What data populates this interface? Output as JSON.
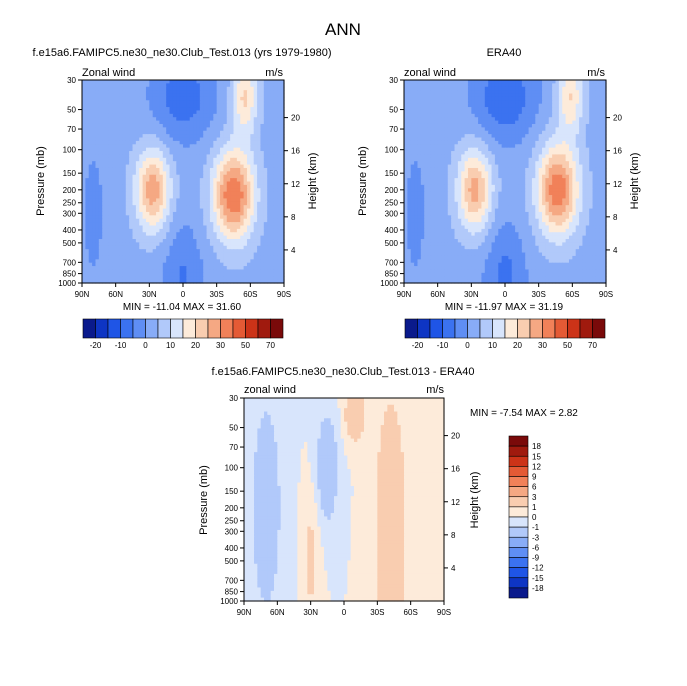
{
  "figure": {
    "title": "ANN"
  },
  "colors": {
    "full_scale": [
      "#0a1a8c",
      "#0e35c4",
      "#1f55e6",
      "#3b72f0",
      "#5f8ef4",
      "#88acf7",
      "#b1c9fa",
      "#d8e5fc",
      "#fdebda",
      "#f9cdb0",
      "#f5a883",
      "#f18159",
      "#e45a35",
      "#cc3318",
      "#a01a0e",
      "#7a0a0a"
    ],
    "diff_scale": [
      "#0a1a8c",
      "#0e35c4",
      "#1f55e6",
      "#3b72f0",
      "#5f8ef4",
      "#88acf7",
      "#b1c9fa",
      "#d8e5fc",
      "#fdebda",
      "#f9cdb0",
      "#f5a883",
      "#f18159",
      "#e45a35",
      "#cc3318",
      "#a01a0e",
      "#7a0a0a"
    ]
  },
  "chart_data": [
    {
      "type": "heatmap",
      "title": "f.e15a6.FAMIPC5.ne30_ne30.Club_Test.013 (yrs 1979-1980)",
      "left_label": "Zonal wind",
      "right_label": "m/s",
      "ylabel": "Pressure (mb)",
      "ylabel_right": "Height (km)",
      "x_ticks": [
        "90N",
        "60N",
        "30N",
        "0",
        "30S",
        "60S",
        "90S"
      ],
      "y_ticks": [
        "30",
        "50",
        "70",
        "100",
        "150",
        "200",
        "250",
        "300",
        "400",
        "500",
        "700",
        "850",
        "1000"
      ],
      "y_ticks_right": [
        "20",
        "16",
        "12",
        "8",
        "4"
      ],
      "stats": "MIN = -11.04  MAX =  31.60",
      "min": -11.04,
      "max": 31.6,
      "features": [
        {
          "lat": -45,
          "p": 220,
          "value": 32,
          "sx": 13,
          "sy": 0.55
        },
        {
          "lat": 27,
          "p": 200,
          "value": 25,
          "sx": 11,
          "sy": 0.5
        },
        {
          "lat": -55,
          "p": 40,
          "value": 18,
          "sx": 8,
          "sy": 0.45
        },
        {
          "lat": 0,
          "p": 40,
          "value": -11,
          "sx": 20,
          "sy": 0.55
        },
        {
          "lat": 0,
          "p": 700,
          "value": -6,
          "sx": 12,
          "sy": 0.6
        },
        {
          "lat": 80,
          "p": 300,
          "value": -4,
          "sx": 10,
          "sy": 1.2
        }
      ]
    },
    {
      "type": "heatmap",
      "title": "ERA40",
      "left_label": "zonal wind",
      "right_label": "m/s",
      "ylabel": "Pressure (mb)",
      "ylabel_right": "Height (km)",
      "x_ticks": [
        "90N",
        "60N",
        "30N",
        "0",
        "30S",
        "60S",
        "90S"
      ],
      "y_ticks": [
        "30",
        "50",
        "70",
        "100",
        "150",
        "200",
        "250",
        "300",
        "400",
        "500",
        "700",
        "850",
        "1000"
      ],
      "y_ticks_right": [
        "20",
        "16",
        "12",
        "8",
        "4"
      ],
      "stats": "MIN = -11.97  MAX =  31.19",
      "min": -11.97,
      "max": 31.19,
      "features": [
        {
          "lat": -47,
          "p": 200,
          "value": 31,
          "sx": 13,
          "sy": 0.55
        },
        {
          "lat": 27,
          "p": 200,
          "value": 24,
          "sx": 11,
          "sy": 0.5
        },
        {
          "lat": -58,
          "p": 40,
          "value": 17,
          "sx": 8,
          "sy": 0.45
        },
        {
          "lat": 0,
          "p": 40,
          "value": -12,
          "sx": 20,
          "sy": 0.55
        },
        {
          "lat": 0,
          "p": 700,
          "value": -7,
          "sx": 12,
          "sy": 0.6
        },
        {
          "lat": 80,
          "p": 300,
          "value": -4,
          "sx": 10,
          "sy": 1.2
        }
      ]
    },
    {
      "type": "heatmap",
      "title": "f.e15a6.FAMIPC5.ne30_ne30.Club_Test.013 - ERA40",
      "left_label": "zonal wind",
      "right_label": "m/s",
      "ylabel": "Pressure (mb)",
      "ylabel_right": "Height (km)",
      "x_ticks": [
        "90N",
        "60N",
        "30N",
        "0",
        "30S",
        "60S",
        "90S"
      ],
      "y_ticks": [
        "30",
        "50",
        "70",
        "100",
        "150",
        "200",
        "250",
        "300",
        "400",
        "500",
        "700",
        "850",
        "1000"
      ],
      "y_ticks_right": [
        "20",
        "16",
        "12",
        "8",
        "4"
      ],
      "stats": "MIN = -7.54  MAX =  2.82",
      "min": -7.54,
      "max": 2.82,
      "features": [
        {
          "lat": -42,
          "p": 300,
          "value": 3,
          "sx": 9,
          "sy": 1.5
        },
        {
          "lat": 15,
          "p": 100,
          "value": -3,
          "sx": 6,
          "sy": 0.6
        },
        {
          "lat": -10,
          "p": 40,
          "value": 3,
          "sx": 6,
          "sy": 0.3
        },
        {
          "lat": 30,
          "p": 500,
          "value": 1.5,
          "sx": 5,
          "sy": 0.7
        },
        {
          "lat": 70,
          "p": 200,
          "value": -2,
          "sx": 10,
          "sy": 1.4
        }
      ]
    }
  ],
  "colorbars": {
    "full": {
      "labels": [
        "-20",
        "-10",
        "0",
        "10",
        "20",
        "30",
        "50",
        "70"
      ]
    },
    "diff": {
      "labels": [
        "18",
        "15",
        "12",
        "9",
        "6",
        "3",
        "1",
        "0",
        "-1",
        "-3",
        "-6",
        "-9",
        "-12",
        "-15",
        "-18"
      ]
    }
  }
}
